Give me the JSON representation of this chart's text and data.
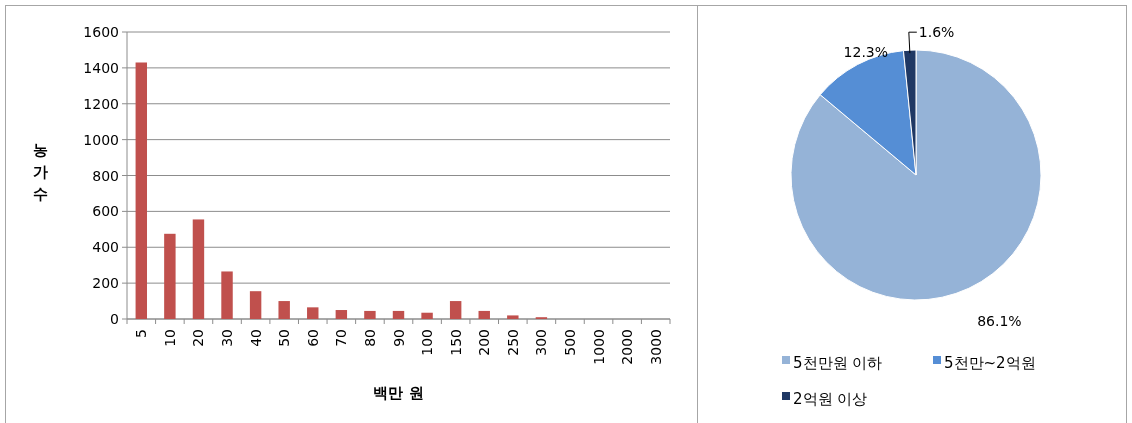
{
  "chart_data": [
    {
      "type": "bar",
      "xlabel": "백만 원",
      "ylabel": "농가수",
      "categories": [
        "5",
        "10",
        "20",
        "30",
        "40",
        "50",
        "60",
        "70",
        "80",
        "90",
        "100",
        "150",
        "200",
        "250",
        "300",
        "500",
        "1000",
        "2000",
        "3000"
      ],
      "values": [
        1430,
        475,
        555,
        265,
        155,
        100,
        65,
        50,
        45,
        45,
        35,
        100,
        45,
        20,
        10,
        0,
        0,
        0,
        0
      ],
      "color": "#c0504d",
      "ylim": [
        0,
        1600
      ],
      "yticks": [
        0,
        200,
        400,
        600,
        800,
        1000,
        1200,
        1400,
        1600
      ],
      "grid": "y"
    },
    {
      "type": "pie",
      "categories": [
        "5천만원 이하",
        "5천만~2억원",
        "2억원 이상"
      ],
      "values": [
        86.1,
        12.3,
        1.6
      ],
      "colors": [
        "#95b3d7",
        "#558ed5",
        "#1f3864"
      ],
      "value_labels": [
        "86.1%",
        "12.3%",
        "1.6%"
      ],
      "legend": "bottom"
    }
  ]
}
